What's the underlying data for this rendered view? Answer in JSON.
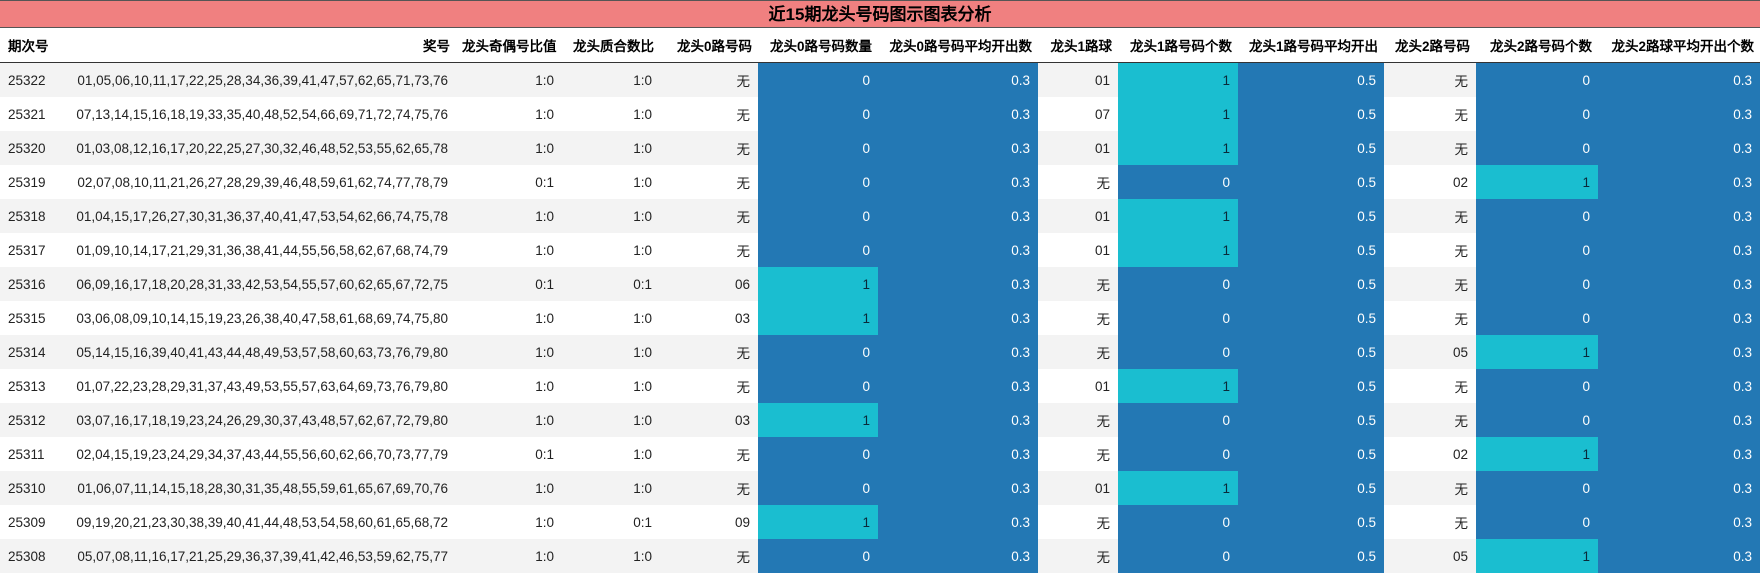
{
  "title": "近15期龙头号码图示图表分析",
  "headers": [
    "期次号",
    "奖号",
    "龙头奇偶号比值",
    "龙头质合数比",
    "龙头0路号码",
    "龙头0路号码数量",
    "龙头0路号码平均开出数",
    "龙头1路球",
    "龙头1路号码个数",
    "龙头1路号码平均开出",
    "龙头2路号码",
    "龙头2路号码个数",
    "龙头2路球平均开出个数"
  ],
  "rows": [
    [
      "25322",
      "01,05,06,10,11,17,22,25,28,34,36,39,41,47,57,62,65,71,73,76",
      "1:0",
      "1:0",
      "无",
      "0",
      "0.3",
      "01",
      "1",
      "0.5",
      "无",
      "0",
      "0.3"
    ],
    [
      "25321",
      "07,13,14,15,16,18,19,33,35,40,48,52,54,66,69,71,72,74,75,76",
      "1:0",
      "1:0",
      "无",
      "0",
      "0.3",
      "07",
      "1",
      "0.5",
      "无",
      "0",
      "0.3"
    ],
    [
      "25320",
      "01,03,08,12,16,17,20,22,25,27,30,32,46,48,52,53,55,62,65,78",
      "1:0",
      "1:0",
      "无",
      "0",
      "0.3",
      "01",
      "1",
      "0.5",
      "无",
      "0",
      "0.3"
    ],
    [
      "25319",
      "02,07,08,10,11,21,26,27,28,29,39,46,48,59,61,62,74,77,78,79",
      "0:1",
      "1:0",
      "无",
      "0",
      "0.3",
      "无",
      "0",
      "0.5",
      "02",
      "1",
      "0.3"
    ],
    [
      "25318",
      "01,04,15,17,26,27,30,31,36,37,40,41,47,53,54,62,66,74,75,78",
      "1:0",
      "1:0",
      "无",
      "0",
      "0.3",
      "01",
      "1",
      "0.5",
      "无",
      "0",
      "0.3"
    ],
    [
      "25317",
      "01,09,10,14,17,21,29,31,36,38,41,44,55,56,58,62,67,68,74,79",
      "1:0",
      "1:0",
      "无",
      "0",
      "0.3",
      "01",
      "1",
      "0.5",
      "无",
      "0",
      "0.3"
    ],
    [
      "25316",
      "06,09,16,17,18,20,28,31,33,42,53,54,55,57,60,62,65,67,72,75",
      "0:1",
      "0:1",
      "06",
      "1",
      "0.3",
      "无",
      "0",
      "0.5",
      "无",
      "0",
      "0.3"
    ],
    [
      "25315",
      "03,06,08,09,10,14,15,19,23,26,38,40,47,58,61,68,69,74,75,80",
      "1:0",
      "1:0",
      "03",
      "1",
      "0.3",
      "无",
      "0",
      "0.5",
      "无",
      "0",
      "0.3"
    ],
    [
      "25314",
      "05,14,15,16,39,40,41,43,44,48,49,53,57,58,60,63,73,76,79,80",
      "1:0",
      "1:0",
      "无",
      "0",
      "0.3",
      "无",
      "0",
      "0.5",
      "05",
      "1",
      "0.3"
    ],
    [
      "25313",
      "01,07,22,23,28,29,31,37,43,49,53,55,57,63,64,69,73,76,79,80",
      "1:0",
      "1:0",
      "无",
      "0",
      "0.3",
      "01",
      "1",
      "0.5",
      "无",
      "0",
      "0.3"
    ],
    [
      "25312",
      "03,07,16,17,18,19,23,24,26,29,30,37,43,48,57,62,67,72,79,80",
      "1:0",
      "1:0",
      "03",
      "1",
      "0.3",
      "无",
      "0",
      "0.5",
      "无",
      "0",
      "0.3"
    ],
    [
      "25311",
      "02,04,15,19,23,24,29,34,37,43,44,55,56,60,62,66,70,73,77,79",
      "0:1",
      "1:0",
      "无",
      "0",
      "0.3",
      "无",
      "0",
      "0.5",
      "02",
      "1",
      "0.3"
    ],
    [
      "25310",
      "01,06,07,11,14,15,18,28,30,31,35,48,55,59,61,65,67,69,70,76",
      "1:0",
      "1:0",
      "无",
      "0",
      "0.3",
      "01",
      "1",
      "0.5",
      "无",
      "0",
      "0.3"
    ],
    [
      "25309",
      "09,19,20,21,23,30,38,39,40,41,44,48,53,54,58,60,61,65,68,72",
      "1:0",
      "0:1",
      "09",
      "1",
      "0.3",
      "无",
      "0",
      "0.5",
      "无",
      "0",
      "0.3"
    ],
    [
      "25308",
      "05,07,08,11,16,17,21,25,29,36,37,39,41,42,46,53,59,62,75,77",
      "1:0",
      "1:0",
      "无",
      "0",
      "0.3",
      "无",
      "0",
      "0.5",
      "05",
      "1",
      "0.3"
    ]
  ],
  "colors": {
    "title_bg": "#f08080",
    "dark_cell": "#2378b4",
    "highlight_cell": "#1abed0"
  }
}
